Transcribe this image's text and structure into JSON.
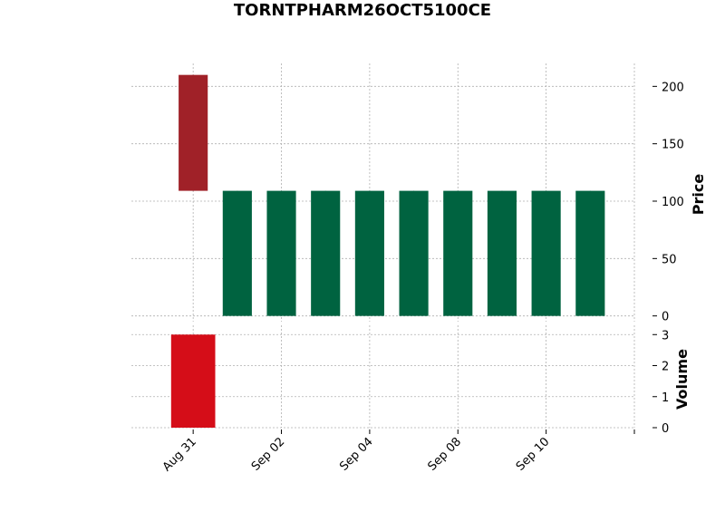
{
  "chart_data": {
    "type": "candlestick",
    "title": "TORNTPHARM26OCT5100CE",
    "ylabel": "Price",
    "volume_label": "Volume",
    "price_ylim": [
      -5,
      220
    ],
    "price_ticks": [
      0,
      50,
      100,
      150,
      200
    ],
    "volume_ylim": [
      0,
      3.3
    ],
    "volume_ticks": [
      0,
      1,
      2,
      3
    ],
    "x_tick_labels": [
      "Aug 31",
      "Sep 02",
      "Sep 04",
      "Sep 08",
      "Sep 10",
      ""
    ],
    "x_tick_index": [
      0,
      2,
      4,
      6,
      8,
      10
    ],
    "x_range": [
      -1.4,
      10.0
    ],
    "grid": true,
    "colors": {
      "up": "#006340",
      "down": "#a02128",
      "volume_down": "#d50d18",
      "volume_up": "#007a00"
    },
    "candles": [
      {
        "index": 0,
        "open": 210,
        "high": 210,
        "low": 109,
        "close": 109,
        "volume": 3
      },
      {
        "index": 1,
        "open": 0,
        "high": 109,
        "low": 0,
        "close": 109,
        "volume": 0
      },
      {
        "index": 2,
        "open": 0,
        "high": 109,
        "low": 0,
        "close": 109,
        "volume": 0
      },
      {
        "index": 3,
        "open": 0,
        "high": 109,
        "low": 0,
        "close": 109,
        "volume": 0
      },
      {
        "index": 4,
        "open": 0,
        "high": 109,
        "low": 0,
        "close": 109,
        "volume": 0
      },
      {
        "index": 5,
        "open": 0,
        "high": 109,
        "low": 0,
        "close": 109,
        "volume": 0
      },
      {
        "index": 6,
        "open": 0,
        "high": 109,
        "low": 0,
        "close": 109,
        "volume": 0
      },
      {
        "index": 7,
        "open": 0,
        "high": 109,
        "low": 0,
        "close": 109,
        "volume": 0
      },
      {
        "index": 8,
        "open": 0,
        "high": 109,
        "low": 0,
        "close": 109,
        "volume": 0
      },
      {
        "index": 9,
        "open": 0,
        "high": 109,
        "low": 0,
        "close": 109,
        "volume": 0
      }
    ]
  }
}
